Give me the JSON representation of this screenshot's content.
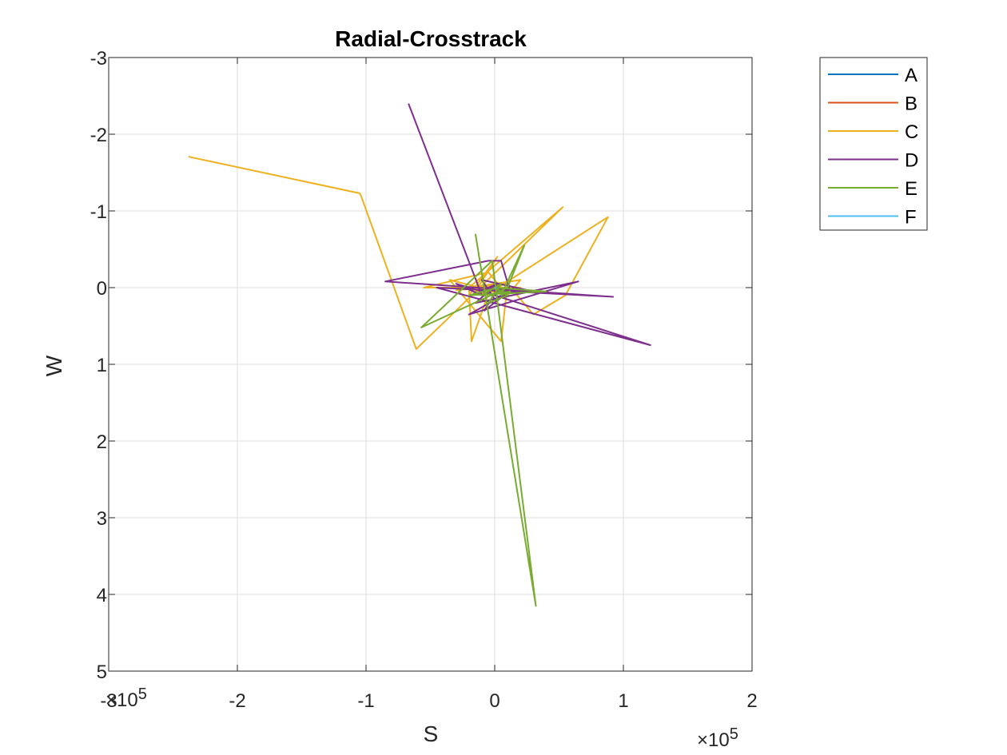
{
  "chart_data": {
    "type": "line",
    "title": "Radial-Crosstrack",
    "xlabel": "S",
    "ylabel": "W",
    "x_exponent_label": "×10",
    "x_exponent_power": "5",
    "y_exponent_label": "×10",
    "y_exponent_power": "5",
    "xlim": [
      -3,
      2
    ],
    "ylim": [
      -3,
      5
    ],
    "y_reversed": true,
    "x_ticks": [
      "-3",
      "-2",
      "-1",
      "0",
      "1",
      "2"
    ],
    "y_ticks": [
      "-3",
      "-2",
      "-1",
      "0",
      "1",
      "2",
      "3",
      "4",
      "5"
    ],
    "grid": true,
    "legend_placement": "outside-top-right",
    "series": [
      {
        "name": "A",
        "color": "#0072BD",
        "x": [
          0,
          0.02,
          -0.01
        ],
        "y": [
          0,
          0.01,
          -0.01
        ]
      },
      {
        "name": "B",
        "color": "#D95319",
        "x": [
          0,
          -0.01,
          0.01
        ],
        "y": [
          0,
          0.01,
          0
        ]
      },
      {
        "name": "C",
        "color": "#EDB120",
        "x": [
          -2.38,
          -2.36,
          -1.05,
          -1.04,
          -0.61,
          -0.3,
          0.53,
          -0.2,
          -0.18,
          -0.05,
          0.88,
          0.55,
          0.3,
          0.1,
          0.05,
          -0.35,
          0.0,
          -0.2,
          0.2,
          0.1,
          -0.05,
          -0.55,
          0.2,
          -0.2,
          0.02,
          -0.15,
          0.05,
          -0.3,
          0.1,
          -0.1,
          0.03,
          -0.05
        ],
        "y": [
          -1.71,
          -1.7,
          -1.23,
          -1.2,
          0.8,
          0.3,
          -1.05,
          0.0,
          0.7,
          0.08,
          -0.92,
          0.1,
          0.35,
          -0.05,
          0.7,
          -0.1,
          0.05,
          0.0,
          -0.1,
          0.1,
          -0.2,
          0.0,
          0.0,
          0.1,
          -0.4,
          0.05,
          0.0,
          0.03,
          -0.05,
          0.02,
          0.06,
          0.0
        ]
      },
      {
        "name": "D",
        "color": "#7E2F8E",
        "x": [
          -0.67,
          -0.1,
          -0.3,
          0.0,
          1.21,
          -0.45,
          0.92,
          -0.85,
          -0.05,
          0.05,
          0.12,
          -0.2,
          0.65,
          -0.15,
          0.02,
          -0.05,
          0.3,
          -0.1,
          0.0,
          0.15,
          -0.08,
          0.04
        ],
        "y": [
          -2.4,
          0.1,
          -0.05,
          0.1,
          0.75,
          0.0,
          0.12,
          -0.08,
          -0.35,
          -0.35,
          0.05,
          0.35,
          -0.08,
          0.2,
          -0.05,
          0.0,
          0.05,
          -0.1,
          0.15,
          0.0,
          0.3,
          -0.05
        ]
      },
      {
        "name": "E",
        "color": "#77AC30",
        "x": [
          -0.15,
          0.32,
          0.0,
          -0.02,
          -0.57,
          0.1,
          0.23,
          0.05,
          0.12,
          -0.1,
          0.05,
          -0.05,
          0.1,
          0.0,
          0.4,
          -0.2,
          0.02
        ],
        "y": [
          -0.7,
          4.15,
          -0.1,
          -0.35,
          0.52,
          0.0,
          -0.55,
          0.1,
          0.05,
          0.1,
          -0.05,
          0.2,
          0.1,
          0.0,
          0.05,
          0.1,
          0.0
        ]
      },
      {
        "name": "F",
        "color": "#4DBEEE",
        "x": [
          0,
          0.01
        ],
        "y": [
          0,
          0.01
        ]
      }
    ]
  }
}
